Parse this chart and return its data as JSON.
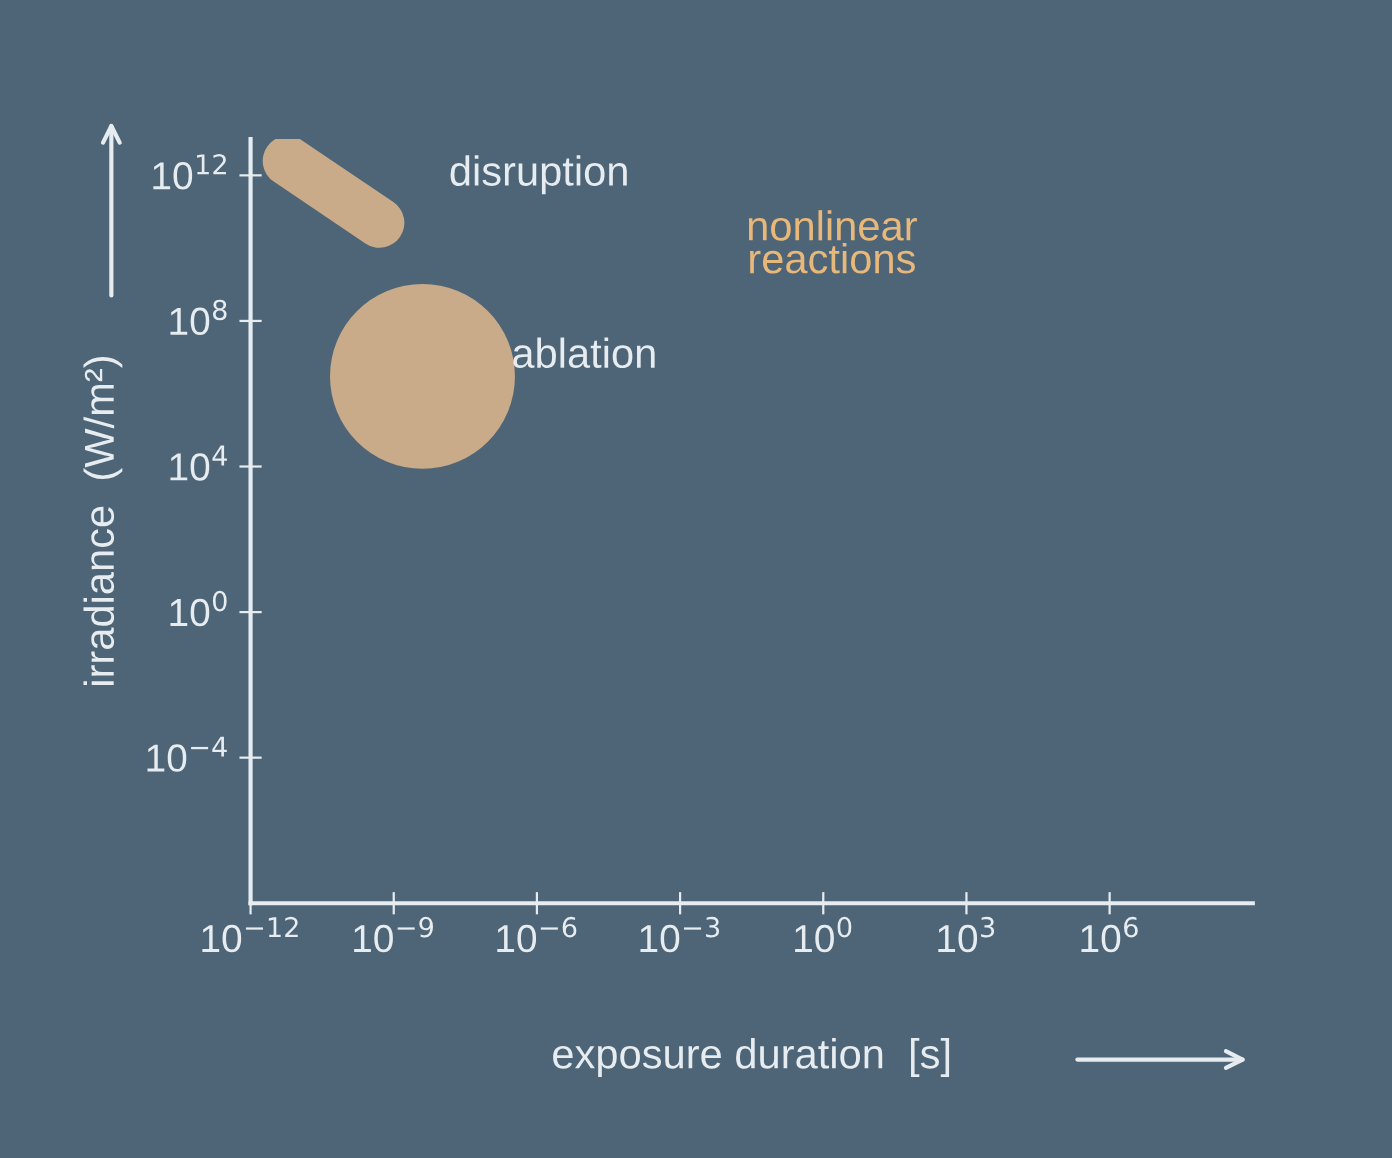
{
  "chart_data": {
    "type": "bubble",
    "xlabel": "exposure duration  [s]",
    "ylabel": "irradiance  (W/m²)",
    "log": "xy",
    "xlim": [
      1e-12,
      1000000000.0
    ],
    "ylim": [
      1e-08,
      10000000000000.0
    ],
    "xticks": [
      {
        "value": 1e-12,
        "label": "10$^{−12}$"
      },
      {
        "value": 1e-09,
        "label": "10$^{−9}$"
      },
      {
        "value": 1e-06,
        "label": "10$^{−6}$"
      },
      {
        "value": 0.001,
        "label": "10$^{−3}$"
      },
      {
        "value": 1,
        "label": "10$^{0}$"
      },
      {
        "value": 1000,
        "label": "10$^{3}$"
      },
      {
        "value": 1000000,
        "label": "10$^{6}$"
      }
    ],
    "yticks": [
      {
        "value": 0.0001,
        "label": "10$^{−4}$"
      },
      {
        "value": 1,
        "label": "10$^{0}$"
      },
      {
        "value": 10000,
        "label": "10$^{4}$"
      },
      {
        "value": 100000000.0,
        "label": "10$^{8}$"
      },
      {
        "value": 1000000000000.0,
        "label": "10$^{12}$"
      }
    ],
    "series": [
      {
        "name": "disruption",
        "type": "line",
        "color": "#c9ab8a",
        "x": [
          6e-12,
          5e-10
        ],
        "values": [
          2500000000000.0,
          50000000000.0
        ]
      },
      {
        "name": "ablation",
        "color": "#c9ab8a",
        "x": [
          4e-09
        ],
        "values": [
          3000000.0
        ],
        "sizes": [
          1
        ]
      }
    ],
    "annotations": [
      "nonlinear\nreactions"
    ],
    "grid": false,
    "legend": false
  }
}
